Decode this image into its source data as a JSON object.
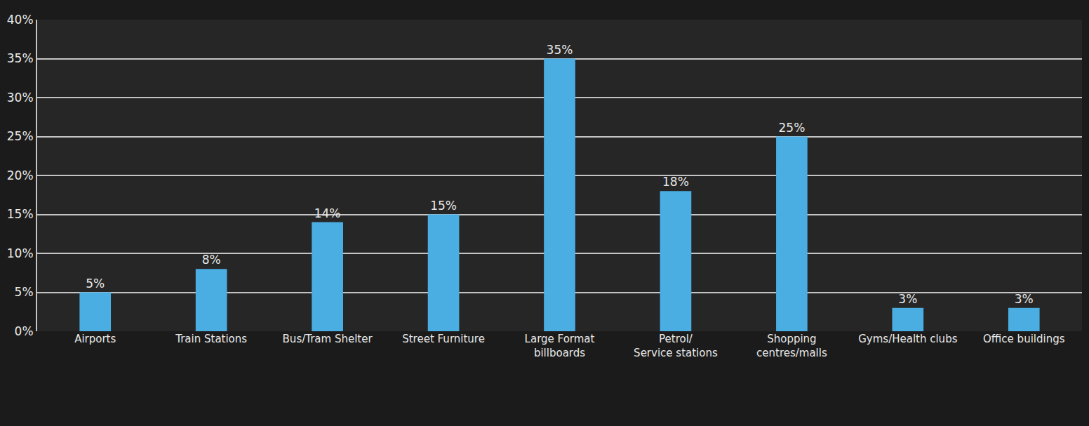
{
  "chart_data": {
    "type": "bar",
    "categories": [
      "Airports",
      "Train Stations",
      "Bus/Tram Shelter",
      "Street Furniture",
      "Large Format\nbillboards",
      "Petrol/\nService stations",
      "Shopping\ncentres/malls",
      "Gyms/Health clubs",
      "Office buildings"
    ],
    "values": [
      5,
      8,
      14,
      15,
      35,
      18,
      25,
      3,
      3
    ],
    "value_labels": [
      "5%",
      "8%",
      "14%",
      "15%",
      "35%",
      "18%",
      "25%",
      "3%",
      "3%"
    ],
    "color": "#4aaee3",
    "ylim": [
      0,
      40
    ],
    "yticks": [
      {
        "value": 0,
        "label": "0%"
      },
      {
        "value": 5,
        "label": "5%"
      },
      {
        "value": 10,
        "label": "10%"
      },
      {
        "value": 15,
        "label": "15%"
      },
      {
        "value": 20,
        "label": "20%"
      },
      {
        "value": 25,
        "label": "25%"
      },
      {
        "value": 30,
        "label": "30%"
      },
      {
        "value": 35,
        "label": "35%"
      },
      {
        "value": 40,
        "label": "40%"
      }
    ],
    "grid": true,
    "data_labels": true
  }
}
